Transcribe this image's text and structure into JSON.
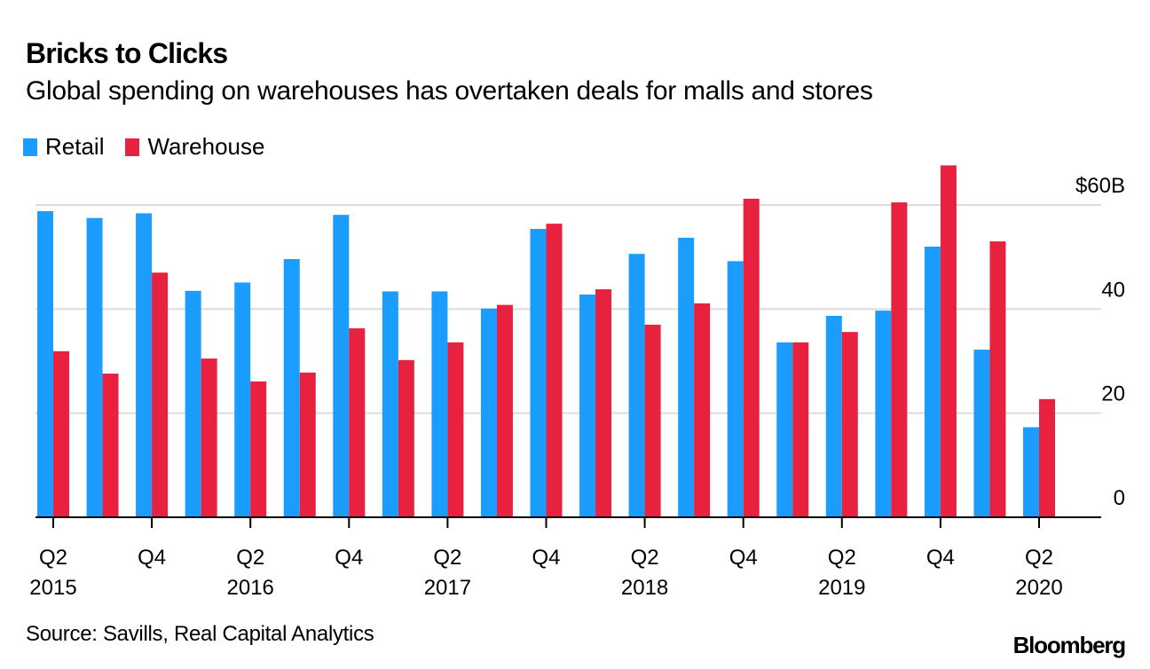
{
  "header": {
    "title": "Bricks to Clicks",
    "subtitle": "Global spending on warehouses has overtaken deals for malls and stores"
  },
  "legend": [
    {
      "label": "Retail",
      "color": "#1a9dff"
    },
    {
      "label": "Warehouse",
      "color": "#e8213f"
    }
  ],
  "footer": {
    "source": "Source: Savills, Real Capital Analytics",
    "brand": "Bloomberg"
  },
  "chart_data": {
    "type": "bar",
    "title": "Bricks to Clicks",
    "subtitle": "Global spending on warehouses has overtaken deals for malls and stores",
    "xlabel": "",
    "ylabel": "",
    "ylim": [
      0,
      60
    ],
    "yticks": [
      0,
      20,
      40,
      60
    ],
    "ytick_labels": [
      "0",
      "20",
      "40",
      "$60B"
    ],
    "yaxis_position": "right",
    "grid": true,
    "legend_position": "top-left",
    "categories": [
      "Q2 2015",
      "Q3 2015",
      "Q4 2015",
      "Q1 2016",
      "Q2 2016",
      "Q3 2016",
      "Q4 2016",
      "Q1 2017",
      "Q2 2017",
      "Q3 2017",
      "Q4 2017",
      "Q1 2018",
      "Q2 2018",
      "Q3 2018",
      "Q4 2018",
      "Q1 2019",
      "Q2 2019",
      "Q3 2019",
      "Q4 2019",
      "Q1 2020",
      "Q2 2020"
    ],
    "xtick_labels": [
      {
        "index": 0,
        "quarter": "Q2",
        "year": "2015"
      },
      {
        "index": 2,
        "quarter": "Q4",
        "year": ""
      },
      {
        "index": 4,
        "quarter": "Q2",
        "year": "2016"
      },
      {
        "index": 6,
        "quarter": "Q4",
        "year": ""
      },
      {
        "index": 8,
        "quarter": "Q2",
        "year": "2017"
      },
      {
        "index": 10,
        "quarter": "Q4",
        "year": ""
      },
      {
        "index": 12,
        "quarter": "Q2",
        "year": "2018"
      },
      {
        "index": 14,
        "quarter": "Q4",
        "year": ""
      },
      {
        "index": 16,
        "quarter": "Q2",
        "year": "2019"
      },
      {
        "index": 18,
        "quarter": "Q4",
        "year": ""
      },
      {
        "index": 20,
        "quarter": "Q2",
        "year": "2020"
      }
    ],
    "series": [
      {
        "name": "Retail",
        "color": "#1a9dff",
        "values": [
          58.8,
          57.5,
          58.4,
          43.5,
          45.1,
          49.6,
          58.1,
          43.4,
          43.4,
          40.1,
          55.4,
          42.8,
          50.6,
          53.7,
          49.2,
          33.6,
          38.7,
          39.7,
          52.0,
          32.2,
          17.3
        ]
      },
      {
        "name": "Warehouse",
        "color": "#e8213f",
        "values": [
          31.9,
          27.6,
          47.0,
          30.5,
          26.1,
          27.8,
          36.3,
          30.2,
          33.6,
          40.8,
          56.4,
          43.8,
          37.0,
          41.1,
          61.2,
          33.6,
          35.6,
          60.5,
          67.6,
          53.0,
          22.7
        ]
      }
    ]
  }
}
